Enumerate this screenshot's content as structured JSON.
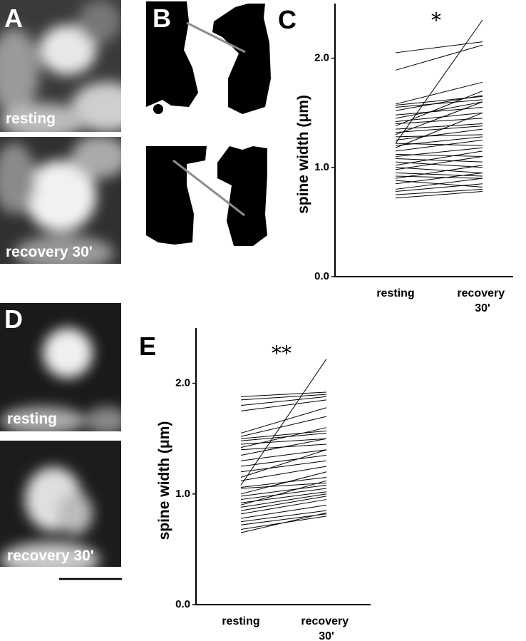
{
  "panels": [
    {
      "label": "A",
      "captions": [
        "resting",
        "recovery 30'"
      ]
    },
    {
      "label": "B"
    },
    {
      "label": "D",
      "captions": [
        "resting",
        "recovery 30'"
      ]
    }
  ],
  "chart_data": [
    {
      "type": "line",
      "panel_label": "C",
      "annotation": "*",
      "y_label": "spine width (μm)",
      "color": "#000000",
      "categories": [
        "resting",
        "recovery 30'"
      ],
      "ylim": [
        0,
        2.5
      ],
      "yticks": [
        {
          "value": 0,
          "label": "0.0"
        },
        {
          "value": 1,
          "label": "1.0"
        },
        {
          "value": 2,
          "label": "2.0"
        }
      ],
      "series": [
        {
          "values": [
            2.05,
            2.15
          ]
        },
        {
          "values": [
            1.89,
            2.12
          ]
        },
        {
          "values": [
            1.22,
            2.35
          ]
        },
        {
          "values": [
            1.58,
            1.78
          ]
        },
        {
          "values": [
            1.57,
            1.65
          ]
        },
        {
          "values": [
            1.55,
            1.62
          ]
        },
        {
          "values": [
            1.52,
            1.66
          ]
        },
        {
          "values": [
            1.48,
            1.55
          ]
        },
        {
          "values": [
            1.45,
            1.6
          ]
        },
        {
          "values": [
            1.42,
            1.5
          ]
        },
        {
          "values": [
            1.4,
            1.45
          ]
        },
        {
          "values": [
            1.38,
            1.7
          ]
        },
        {
          "values": [
            1.35,
            1.4
          ]
        },
        {
          "values": [
            1.32,
            1.38
          ]
        },
        {
          "values": [
            1.3,
            1.6
          ]
        },
        {
          "values": [
            1.28,
            1.3
          ]
        },
        {
          "values": [
            1.25,
            1.35
          ]
        },
        {
          "values": [
            1.22,
            1.2
          ]
        },
        {
          "values": [
            1.2,
            1.28
          ]
        },
        {
          "values": [
            1.18,
            1.5
          ]
        },
        {
          "values": [
            1.15,
            1.25
          ]
        },
        {
          "values": [
            1.12,
            1.1
          ]
        },
        {
          "values": [
            1.1,
            1.18
          ]
        },
        {
          "values": [
            1.08,
            1.05
          ]
        },
        {
          "values": [
            1.05,
            1.0
          ]
        },
        {
          "values": [
            1.02,
            1.15
          ]
        },
        {
          "values": [
            1.0,
            0.95
          ]
        },
        {
          "values": [
            0.98,
            1.1
          ]
        },
        {
          "values": [
            0.95,
            0.92
          ]
        },
        {
          "values": [
            0.92,
            0.9
          ]
        },
        {
          "values": [
            0.9,
            1.02
          ]
        },
        {
          "values": [
            0.88,
            0.82
          ]
        },
        {
          "values": [
            0.85,
            0.95
          ]
        },
        {
          "values": [
            0.8,
            0.9
          ]
        },
        {
          "values": [
            0.78,
            0.85
          ]
        },
        {
          "values": [
            0.75,
            0.8
          ]
        },
        {
          "values": [
            0.72,
            0.78
          ]
        }
      ]
    },
    {
      "type": "line",
      "panel_label": "E",
      "annotation": "**",
      "y_label": "spine width (μm)",
      "color": "#000000",
      "categories": [
        "resting",
        "recovery 30'"
      ],
      "ylim": [
        0,
        2.5
      ],
      "yticks": [
        {
          "value": 0,
          "label": "0.0"
        },
        {
          "value": 1,
          "label": "1.0"
        },
        {
          "value": 2,
          "label": "2.0"
        }
      ],
      "series": [
        {
          "values": [
            1.88,
            1.92
          ]
        },
        {
          "values": [
            1.85,
            1.9
          ]
        },
        {
          "values": [
            1.8,
            1.88
          ]
        },
        {
          "values": [
            1.75,
            1.85
          ]
        },
        {
          "values": [
            1.55,
            1.78
          ]
        },
        {
          "values": [
            1.52,
            1.7
          ]
        },
        {
          "values": [
            1.5,
            1.57
          ]
        },
        {
          "values": [
            1.48,
            1.55
          ]
        },
        {
          "values": [
            1.45,
            1.5
          ]
        },
        {
          "values": [
            1.42,
            1.6
          ]
        },
        {
          "values": [
            1.4,
            1.45
          ]
        },
        {
          "values": [
            1.35,
            1.5
          ]
        },
        {
          "values": [
            1.3,
            1.4
          ]
        },
        {
          "values": [
            1.25,
            1.35
          ]
        },
        {
          "values": [
            1.2,
            1.3
          ]
        },
        {
          "values": [
            1.15,
            1.4
          ]
        },
        {
          "values": [
            1.12,
            1.25
          ]
        },
        {
          "values": [
            1.08,
            2.22
          ]
        },
        {
          "values": [
            1.06,
            1.15
          ]
        },
        {
          "values": [
            1.05,
            1.1
          ]
        },
        {
          "values": [
            1.0,
            1.2
          ]
        },
        {
          "values": [
            0.98,
            1.08
          ]
        },
        {
          "values": [
            0.95,
            1.05
          ]
        },
        {
          "values": [
            0.92,
            1.02
          ]
        },
        {
          "values": [
            0.9,
            1.12
          ]
        },
        {
          "values": [
            0.88,
            1.0
          ]
        },
        {
          "values": [
            0.85,
            0.98
          ]
        },
        {
          "values": [
            0.82,
            0.95
          ]
        },
        {
          "values": [
            0.78,
            0.9
          ]
        },
        {
          "values": [
            0.75,
            0.85
          ]
        },
        {
          "values": [
            0.72,
            0.82
          ]
        },
        {
          "values": [
            0.68,
            0.8
          ]
        },
        {
          "values": [
            0.65,
            0.83
          ]
        }
      ]
    }
  ]
}
